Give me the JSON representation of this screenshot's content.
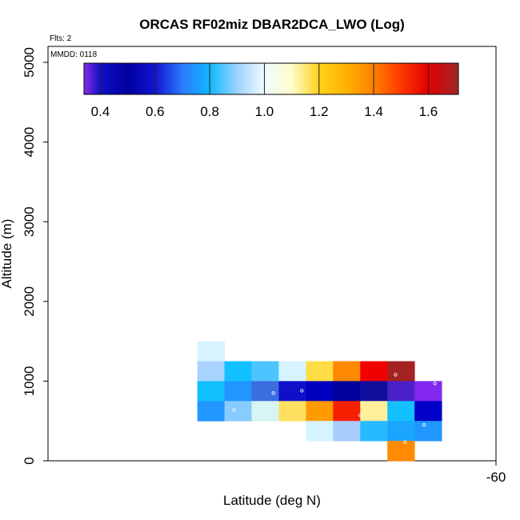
{
  "chart_data": {
    "type": "heatmap",
    "title": "ORCAS RF02miz DBAR2DCA_LWO (Log)",
    "xlabel": "Latitude (deg N)",
    "ylabel": "Altitude (m)",
    "flights_note": "Flts: 2",
    "date_note": "MMDD: 0118",
    "xlim": [
      -63.3,
      -60.0
    ],
    "ylim": [
      0,
      5200
    ],
    "x_ticks": [
      {
        "value": -60,
        "label": "-60"
      }
    ],
    "y_ticks": [
      {
        "value": 0,
        "label": "0"
      },
      {
        "value": 1000,
        "label": "1000"
      },
      {
        "value": 2000,
        "label": "2000"
      },
      {
        "value": 3000,
        "label": "3000"
      },
      {
        "value": 4000,
        "label": "4000"
      },
      {
        "value": 5000,
        "label": "5000"
      }
    ],
    "colorbar": {
      "min": 0.34,
      "max": 1.71,
      "ticks": [
        {
          "value": 0.4,
          "label": "0.4"
        },
        {
          "value": 0.6,
          "label": "0.6"
        },
        {
          "value": 0.8,
          "label": "0.8"
        },
        {
          "value": 1.0,
          "label": "1.0"
        },
        {
          "value": 1.2,
          "label": "1.2"
        },
        {
          "value": 1.4,
          "label": "1.4"
        },
        {
          "value": 1.6,
          "label": "1.6"
        }
      ],
      "stops": [
        {
          "v": 0.34,
          "c": "#8a2be2"
        },
        {
          "v": 0.4,
          "c": "#1010c8"
        },
        {
          "v": 0.5,
          "c": "#0000a0"
        },
        {
          "v": 0.6,
          "c": "#1414d2"
        },
        {
          "v": 0.7,
          "c": "#2b7bff"
        },
        {
          "v": 0.8,
          "c": "#10b8ff"
        },
        {
          "v": 0.9,
          "c": "#9cd2ff"
        },
        {
          "v": 1.0,
          "c": "#f0fcff"
        },
        {
          "v": 1.1,
          "c": "#fffccc"
        },
        {
          "v": 1.2,
          "c": "#ffd21e"
        },
        {
          "v": 1.3,
          "c": "#ffb200"
        },
        {
          "v": 1.4,
          "c": "#ff8000"
        },
        {
          "v": 1.5,
          "c": "#ff3800"
        },
        {
          "v": 1.6,
          "c": "#e00000"
        },
        {
          "v": 1.71,
          "c": "#a02828"
        }
      ]
    },
    "cell_width_deg": 0.2,
    "cell_height_m": 250,
    "cells": [
      {
        "lat": -62.1,
        "alt": 1375,
        "value": 0.97,
        "color": "#d6f4ff"
      },
      {
        "lat": -62.1,
        "alt": 1125,
        "value": 0.88,
        "color": "#a9d3ff"
      },
      {
        "lat": -61.9,
        "alt": 1125,
        "value": 0.8,
        "color": "#13c0ff"
      },
      {
        "lat": -61.7,
        "alt": 1125,
        "value": 0.82,
        "color": "#4ec4ff"
      },
      {
        "lat": -61.5,
        "alt": 1125,
        "value": 0.97,
        "color": "#d6f4ff"
      },
      {
        "lat": -61.3,
        "alt": 1125,
        "value": 1.22,
        "color": "#ffdd44"
      },
      {
        "lat": -61.1,
        "alt": 1125,
        "value": 1.38,
        "color": "#ff8800"
      },
      {
        "lat": -60.9,
        "alt": 1125,
        "value": 1.55,
        "color": "#f20000"
      },
      {
        "lat": -60.7,
        "alt": 1125,
        "value": 1.68,
        "color": "#a52222"
      },
      {
        "lat": -62.1,
        "alt": 875,
        "value": 0.8,
        "color": "#13c0ff"
      },
      {
        "lat": -61.9,
        "alt": 875,
        "value": 0.72,
        "color": "#2196ff"
      },
      {
        "lat": -61.7,
        "alt": 875,
        "value": 0.66,
        "color": "#3c6de0"
      },
      {
        "lat": -61.5,
        "alt": 875,
        "value": 0.58,
        "color": "#1010c8"
      },
      {
        "lat": -61.3,
        "alt": 875,
        "value": 0.53,
        "color": "#0000c0"
      },
      {
        "lat": -61.1,
        "alt": 875,
        "value": 0.48,
        "color": "#00009c"
      },
      {
        "lat": -60.9,
        "alt": 875,
        "value": 0.5,
        "color": "#10109c"
      },
      {
        "lat": -60.7,
        "alt": 875,
        "value": 0.4,
        "color": "#4a20c8"
      },
      {
        "lat": -60.5,
        "alt": 875,
        "value": 0.36,
        "color": "#8228ee"
      },
      {
        "lat": -62.1,
        "alt": 625,
        "value": 0.72,
        "color": "#2196ff"
      },
      {
        "lat": -61.9,
        "alt": 625,
        "value": 0.88,
        "color": "#88ccff"
      },
      {
        "lat": -61.7,
        "alt": 625,
        "value": 0.99,
        "color": "#d8f4f4"
      },
      {
        "lat": -61.5,
        "alt": 625,
        "value": 1.2,
        "color": "#ffe060"
      },
      {
        "lat": -61.3,
        "alt": 625,
        "value": 1.35,
        "color": "#ff9b00"
      },
      {
        "lat": -61.1,
        "alt": 625,
        "value": 1.55,
        "color": "#f52000"
      },
      {
        "lat": -60.9,
        "alt": 625,
        "value": 1.15,
        "color": "#fff099"
      },
      {
        "lat": -60.7,
        "alt": 625,
        "value": 0.8,
        "color": "#13c0ff"
      },
      {
        "lat": -60.5,
        "alt": 625,
        "value": 0.55,
        "color": "#0000c8"
      },
      {
        "lat": -61.3,
        "alt": 375,
        "value": 0.97,
        "color": "#d6f4ff"
      },
      {
        "lat": -61.1,
        "alt": 375,
        "value": 0.86,
        "color": "#a9ccff"
      },
      {
        "lat": -60.9,
        "alt": 375,
        "value": 0.8,
        "color": "#28baff"
      },
      {
        "lat": -60.7,
        "alt": 375,
        "value": 0.75,
        "color": "#1aa6ff"
      },
      {
        "lat": -60.5,
        "alt": 375,
        "value": 0.72,
        "color": "#2196ff"
      },
      {
        "lat": -60.7,
        "alt": 125,
        "value": 1.37,
        "color": "#ff8c00"
      }
    ],
    "markers": [
      {
        "lat": -61.93,
        "alt": 640
      },
      {
        "lat": -61.64,
        "alt": 850
      },
      {
        "lat": -61.43,
        "alt": 880
      },
      {
        "lat": -61.0,
        "alt": 570
      },
      {
        "lat": -60.74,
        "alt": 1080
      },
      {
        "lat": -60.67,
        "alt": 235
      },
      {
        "lat": -60.53,
        "alt": 450
      },
      {
        "lat": -60.45,
        "alt": 970
      }
    ]
  }
}
